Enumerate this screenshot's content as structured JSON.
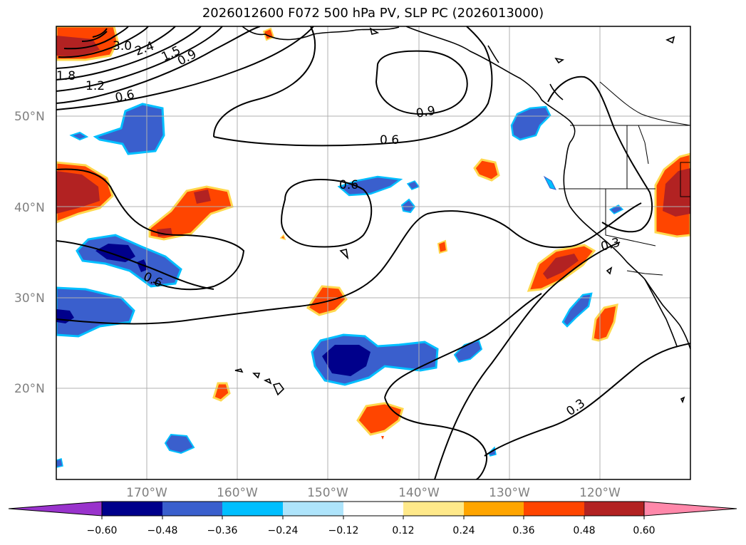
{
  "title": "2026012600 F072 500 hPa PV, SLP PC (2026013000)",
  "map": {
    "lat_labels": [
      "50°N",
      "40°N",
      "30°N",
      "20°N"
    ],
    "lon_labels": [
      "170°W",
      "160°W",
      "150°W",
      "140°W",
      "130°W",
      "120°W"
    ],
    "contour_labels": [
      "3.0",
      "2.4",
      "1.5",
      "0.9",
      "1.8",
      "1.2",
      "0.6",
      "0.9",
      "0.6",
      "0.6",
      "0.6",
      "0.3",
      "0.3"
    ]
  },
  "colorbar": {
    "tick_labels": [
      "−0.60",
      "−0.48",
      "−0.36",
      "−0.24",
      "−0.12",
      "0.12",
      "0.24",
      "0.36",
      "0.48",
      "0.60"
    ],
    "colors": [
      "#9933cc",
      "#00008b",
      "#3a5fcd",
      "#00bfff",
      "#aee4fb",
      "#ffffff",
      "#ffe98a",
      "#ffa500",
      "#ff4500",
      "#b22222",
      "#ff88aa"
    ]
  },
  "colors": {
    "neg_strong": "#00008b",
    "neg_mid": "#3a5fcd",
    "neg_light": "#00bfff",
    "pos_light": "#ffd84d",
    "pos_mid": "#ff4500",
    "pos_strong": "#b22222"
  }
}
